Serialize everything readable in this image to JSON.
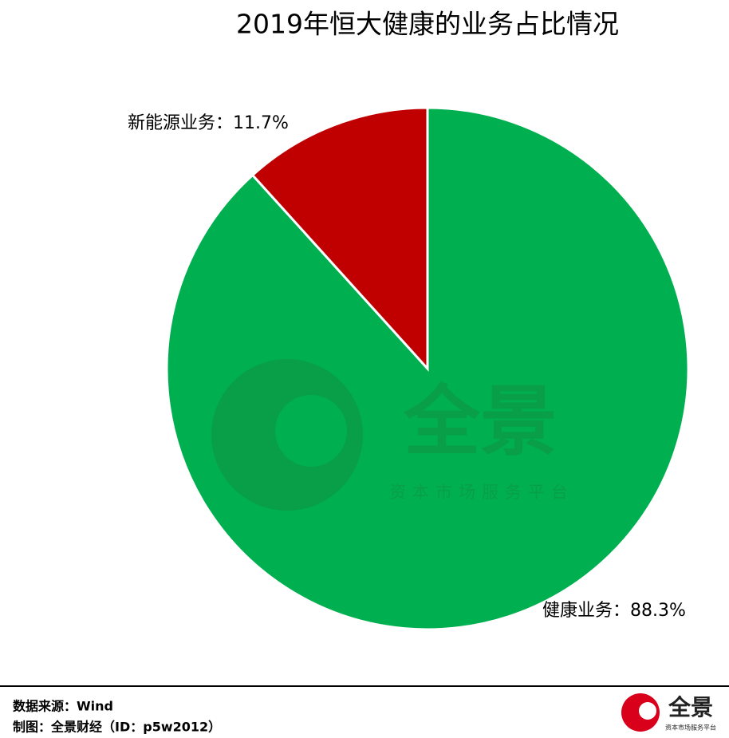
{
  "chart_data": {
    "type": "pie",
    "title": "2019年恒大健康的业务占比情况",
    "categories": [
      "健康业务",
      "新能源业务"
    ],
    "values": [
      88.3,
      11.7
    ],
    "value_labels": [
      "：88.3%",
      "：11.7%"
    ],
    "colors": [
      "#00b050",
      "#c00000"
    ]
  },
  "watermark": {
    "brand": "全景",
    "slogan": "资本市场服务平台"
  },
  "footer": {
    "source": "数据来源：Wind",
    "credit": "制图：全景财经（ID：p5w2012）",
    "logo_brand": "全景",
    "logo_slogan": "资本市场服务平台"
  }
}
